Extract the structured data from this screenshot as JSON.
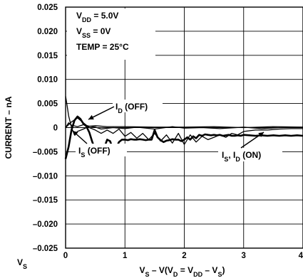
{
  "chart_data": {
    "type": "line",
    "xlabel": [
      "V",
      "S",
      " – V(V",
      "D",
      " = V",
      "DD",
      " – V",
      "S",
      ")"
    ],
    "ylabel": "CURRENT – nA",
    "xlim": [
      0,
      4
    ],
    "ylim": [
      -0.025,
      0.025
    ],
    "x_tick_labels": [
      "0",
      "1",
      "2",
      "3",
      "4"
    ],
    "x_tick_values": [
      0,
      1,
      2,
      3,
      4
    ],
    "y_tick_labels": [
      "0.025",
      "0.020",
      "0.015",
      "0.010",
      "0.005",
      "0",
      "–0.005",
      "–0.010",
      "–0.015",
      "–0.020",
      "–0.025"
    ],
    "y_tick_values": [
      0.025,
      0.02,
      0.015,
      0.01,
      0.005,
      0,
      -0.005,
      -0.01,
      -0.015,
      -0.02,
      -0.025
    ],
    "extra_x_label": {
      "main": "V",
      "sub": "S"
    },
    "conditions": [
      {
        "main": "V",
        "sub": "DD",
        "rest": " = 5.0V"
      },
      {
        "main": "V",
        "sub": "SS",
        "rest": " = 0V"
      },
      {
        "main": "TEMP = 25°C",
        "sub": "",
        "rest": ""
      }
    ],
    "grid": true,
    "series": [
      {
        "name": "ID (OFF)",
        "label_parts": [
          {
            "t": "I"
          },
          {
            "t": "D",
            "sub": true
          },
          {
            "t": " (OFF)"
          }
        ],
        "stroke": 1.3,
        "x": [
          0,
          0.05,
          0.1,
          0.2,
          0.3,
          0.4,
          0.5,
          0.7,
          1.0,
          1.5,
          2.0,
          2.5,
          3.0,
          3.5,
          4.0
        ],
        "y": [
          0,
          0.001,
          0.0005,
          0.0002,
          0.0006,
          0.0003,
          0.0004,
          0.0002,
          0.0002,
          0.0001,
          0.0001,
          0.0002,
          0.0,
          0.0002,
          0.0001
        ]
      },
      {
        "name": "IS (OFF)",
        "label_parts": [
          {
            "t": "I"
          },
          {
            "t": "S",
            "sub": true
          },
          {
            "t": " (OFF)"
          }
        ],
        "stroke": 1.3,
        "x": [
          0,
          0.02,
          0.05,
          0.1,
          0.15,
          0.2,
          0.3,
          0.4,
          0.5,
          0.6,
          0.8,
          1.0,
          1.2,
          1.5,
          1.8,
          2.0,
          2.3,
          2.6,
          3.0,
          3.3,
          3.6,
          4.0
        ],
        "y": [
          0.0065,
          0.005,
          0.0025,
          0.0,
          -0.0015,
          -0.0008,
          -0.0003,
          0.0003,
          0.0001,
          -0.0003,
          0.0,
          -0.0002,
          0.0001,
          -0.0003,
          0.0002,
          -0.0001,
          0.0,
          -0.0002,
          0.0001,
          -0.0002,
          0.0,
          0.0001
        ]
      },
      {
        "name": "IS, ID (ON)",
        "label_parts": [
          {
            "t": "I"
          },
          {
            "t": "S",
            "sub": true
          },
          {
            "t": ", I"
          },
          {
            "t": "D",
            "sub": true
          },
          {
            "t": " (ON)"
          }
        ],
        "stroke": 2.6,
        "x": [
          0,
          0.05,
          0.1,
          0.15,
          0.2,
          0.25,
          0.3,
          0.35,
          0.4,
          0.45,
          0.5,
          0.55,
          0.6,
          0.65,
          0.7,
          0.75,
          0.8,
          0.85,
          0.9,
          0.95,
          1.0,
          1.05,
          1.1,
          1.15,
          1.2,
          1.25,
          1.3,
          1.35,
          1.4,
          1.45,
          1.5,
          1.55,
          1.6,
          1.65,
          1.7,
          1.75,
          1.8,
          1.85,
          1.9,
          1.95,
          2.0,
          2.05,
          2.1,
          2.15,
          2.2,
          2.25,
          2.3,
          2.35,
          2.4,
          2.45,
          2.5,
          2.55,
          2.6,
          2.65,
          2.7,
          2.75,
          2.8,
          2.85,
          2.9,
          2.95,
          3.0,
          3.1,
          3.2,
          3.3,
          3.4,
          3.5,
          3.6,
          3.7,
          3.8,
          3.9,
          4.0
        ],
        "y": [
          -0.0065,
          -0.004,
          -0.0005,
          0.0015,
          0.0023,
          0.0018,
          0.0008,
          0.0003,
          -0.001,
          -0.003,
          -0.0045,
          -0.004,
          -0.0038,
          -0.0042,
          -0.0025,
          -0.0028,
          -0.0045,
          -0.0042,
          -0.003,
          -0.0025,
          -0.0025,
          -0.0026,
          -0.0024,
          -0.0025,
          -0.0025,
          -0.0024,
          -0.0025,
          -0.0026,
          -0.0025,
          -0.0025,
          -0.0005,
          -0.002,
          -0.0026,
          -0.003,
          -0.0027,
          -0.0026,
          -0.0024,
          -0.0025,
          -0.0025,
          -0.0028,
          -0.0025,
          -0.002,
          -0.0025,
          -0.0018,
          -0.0022,
          -0.0015,
          -0.0017,
          -0.0014,
          -0.0015,
          -0.0016,
          -0.0015,
          -0.0016,
          -0.0015,
          -0.0017,
          -0.0016,
          -0.0015,
          -0.0017,
          -0.0017,
          -0.0016,
          -0.0017,
          -0.0015,
          -0.0016,
          -0.0017,
          -0.0016,
          -0.0017,
          -0.0016,
          -0.0017,
          -0.0016,
          -0.0017,
          -0.0016,
          -0.0017
        ]
      },
      {
        "name": "",
        "label_parts": [],
        "stroke": 1.3,
        "x": [
          0,
          0.1,
          0.2,
          0.3,
          0.4,
          0.5,
          0.6,
          0.7,
          0.8,
          0.9,
          1.0,
          1.1,
          1.2,
          1.3,
          1.4,
          1.5,
          1.6,
          1.7,
          1.8,
          1.9,
          2.0,
          2.1,
          2.2,
          2.3,
          2.4,
          2.5,
          2.6,
          2.7,
          2.8,
          2.9,
          3.0,
          3.2,
          3.4,
          3.6,
          3.8,
          4.0
        ],
        "y": [
          0,
          0.0012,
          0.002,
          0.001,
          0.0,
          -0.0005,
          -0.0012,
          -0.0005,
          -0.0012,
          -0.0003,
          -0.0018,
          -0.001,
          -0.0022,
          -0.0012,
          -0.0025,
          -0.0012,
          -0.0028,
          -0.0015,
          -0.0032,
          -0.0012,
          -0.0035,
          -0.0015,
          -0.003,
          -0.0018,
          -0.0025,
          -0.002,
          -0.0015,
          -0.002,
          -0.0012,
          -0.0015,
          -0.0008,
          -0.0005,
          -0.0005,
          -0.0003,
          -0.0002,
          -0.0002
        ]
      }
    ]
  }
}
